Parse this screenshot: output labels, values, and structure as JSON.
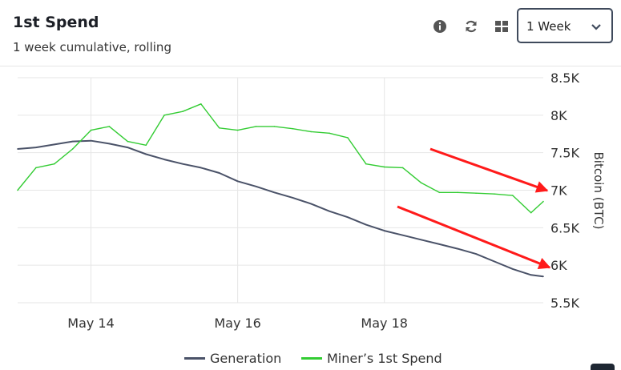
{
  "header": {
    "title": "1st Spend",
    "subtitle": "1 week cumulative, rolling",
    "range_selected": "1 Week",
    "tool_icons": [
      "info-icon",
      "refresh-icon",
      "grid-icon",
      "chevron-down-icon"
    ]
  },
  "colors": {
    "generation": "#4a5268",
    "miners_first_spend": "#33cc33",
    "arrow": "#ff1a1a",
    "grid": "#e6e6e6"
  },
  "chart_data": {
    "type": "line",
    "x_unit": "days",
    "x_range": [
      "2024-05-13T00:00",
      "2024-05-20T04:00"
    ],
    "xticks": [
      {
        "label": "May 14",
        "date": "2024-05-14"
      },
      {
        "label": "May 16",
        "date": "2024-05-16"
      },
      {
        "label": "May 18",
        "date": "2024-05-18"
      }
    ],
    "ylabel": "Bitcoin (BTC)",
    "ylim": [
      5500,
      8500
    ],
    "yticks": [
      {
        "label": "8.5K",
        "value": 8500
      },
      {
        "label": "8K",
        "value": 8000
      },
      {
        "label": "7.5K",
        "value": 7500
      },
      {
        "label": "7K",
        "value": 7000
      },
      {
        "label": "6.5K",
        "value": 6500
      },
      {
        "label": "6K",
        "value": 6000
      },
      {
        "label": "5.5K",
        "value": 5500
      }
    ],
    "grid": true,
    "legend_position": "bottom",
    "series": [
      {
        "name": "Generation",
        "x": [
          "2024-05-13T00:00",
          "2024-05-13T06:00",
          "2024-05-13T12:00",
          "2024-05-13T18:00",
          "2024-05-14T00:00",
          "2024-05-14T06:00",
          "2024-05-14T12:00",
          "2024-05-14T18:00",
          "2024-05-15T00:00",
          "2024-05-15T06:00",
          "2024-05-15T12:00",
          "2024-05-15T18:00",
          "2024-05-16T00:00",
          "2024-05-16T06:00",
          "2024-05-16T12:00",
          "2024-05-16T18:00",
          "2024-05-17T00:00",
          "2024-05-17T06:00",
          "2024-05-17T12:00",
          "2024-05-17T18:00",
          "2024-05-18T00:00",
          "2024-05-18T06:00",
          "2024-05-18T12:00",
          "2024-05-18T18:00",
          "2024-05-19T00:00",
          "2024-05-19T06:00",
          "2024-05-19T12:00",
          "2024-05-19T18:00",
          "2024-05-20T00:00",
          "2024-05-20T04:00"
        ],
        "values": [
          7550,
          7570,
          7610,
          7650,
          7660,
          7620,
          7570,
          7480,
          7410,
          7350,
          7300,
          7230,
          7120,
          7050,
          6970,
          6900,
          6820,
          6720,
          6640,
          6540,
          6460,
          6400,
          6340,
          6280,
          6220,
          6150,
          6050,
          5950,
          5870,
          5850
        ]
      },
      {
        "name": "Miner’s 1st Spend",
        "x": [
          "2024-05-13T00:00",
          "2024-05-13T06:00",
          "2024-05-13T12:00",
          "2024-05-13T18:00",
          "2024-05-14T00:00",
          "2024-05-14T06:00",
          "2024-05-14T12:00",
          "2024-05-14T18:00",
          "2024-05-15T00:00",
          "2024-05-15T06:00",
          "2024-05-15T12:00",
          "2024-05-15T18:00",
          "2024-05-16T00:00",
          "2024-05-16T06:00",
          "2024-05-16T12:00",
          "2024-05-16T18:00",
          "2024-05-17T00:00",
          "2024-05-17T06:00",
          "2024-05-17T12:00",
          "2024-05-17T18:00",
          "2024-05-18T00:00",
          "2024-05-18T06:00",
          "2024-05-18T12:00",
          "2024-05-18T18:00",
          "2024-05-19T00:00",
          "2024-05-19T06:00",
          "2024-05-19T12:00",
          "2024-05-19T18:00",
          "2024-05-20T00:00",
          "2024-05-20T04:00"
        ],
        "values": [
          7000,
          7300,
          7350,
          7550,
          7800,
          7850,
          7650,
          7600,
          8000,
          8050,
          8150,
          7830,
          7800,
          7850,
          7850,
          7820,
          7780,
          7760,
          7700,
          7350,
          7310,
          7300,
          7100,
          6970,
          6970,
          6960,
          6950,
          6930,
          6700,
          6850
        ]
      }
    ]
  }
}
